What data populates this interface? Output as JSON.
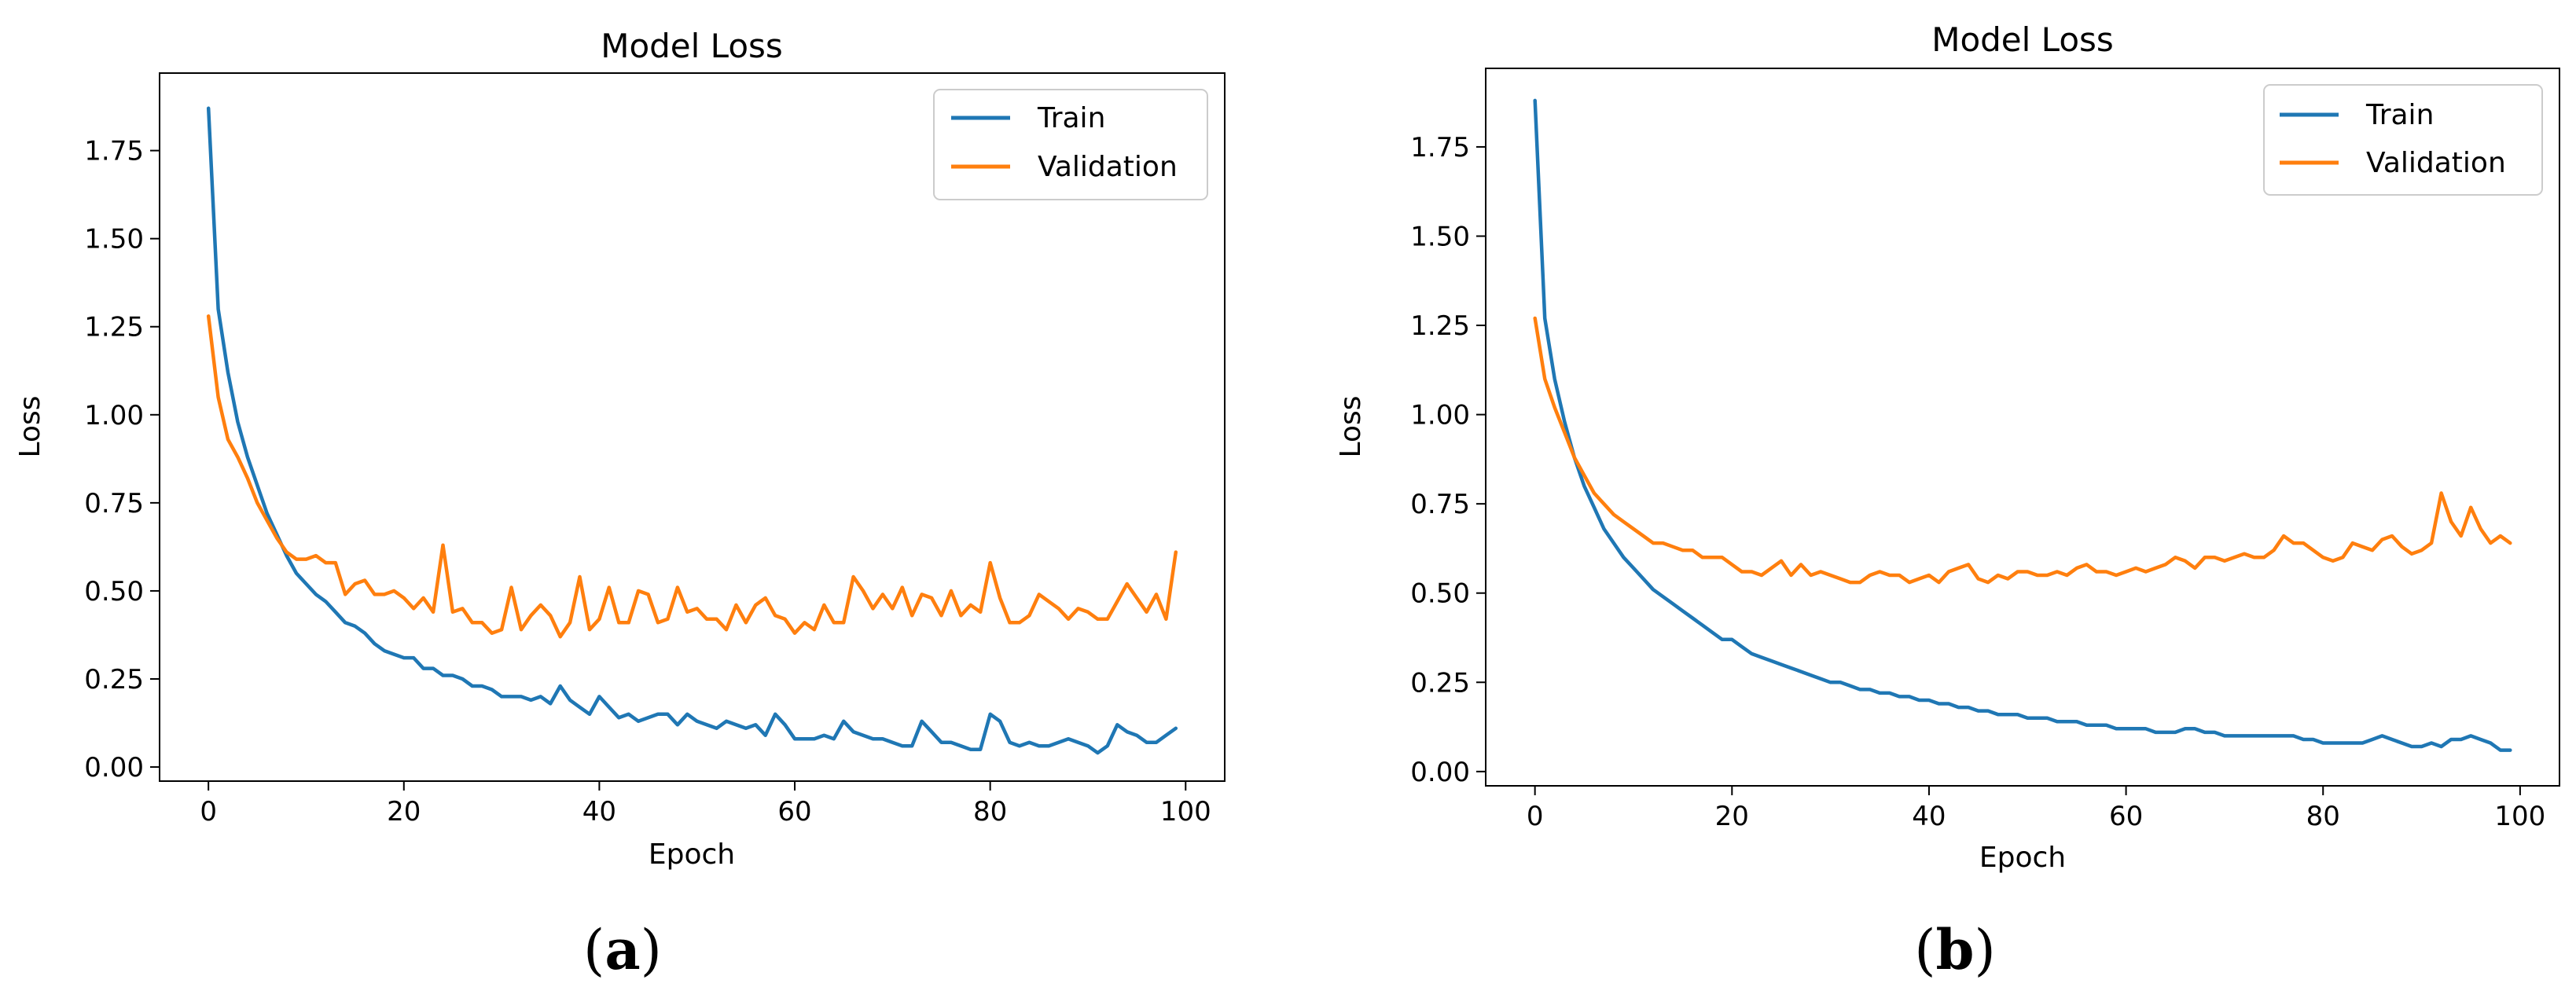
{
  "chart_data": [
    {
      "type": "line",
      "panel_label": "a",
      "title": "Model Loss",
      "xlabel": "Epoch",
      "ylabel": "Loss",
      "xlim": [
        -5,
        104
      ],
      "ylim": [
        -0.04,
        1.97
      ],
      "xticks": [
        0,
        20,
        40,
        60,
        80,
        100
      ],
      "xtick_labels": [
        "0",
        "20",
        "40",
        "60",
        "80",
        "100"
      ],
      "yticks": [
        0.0,
        0.25,
        0.5,
        0.75,
        1.0,
        1.25,
        1.5,
        1.75
      ],
      "ytick_labels": [
        "0.00",
        "0.25",
        "0.50",
        "0.75",
        "1.00",
        "1.25",
        "1.50",
        "1.75"
      ],
      "legend_position": "upper right",
      "series": [
        {
          "name": "Train",
          "color": "#1f77b4",
          "values": [
            1.87,
            1.3,
            1.12,
            0.98,
            0.88,
            0.8,
            0.72,
            0.66,
            0.6,
            0.55,
            0.52,
            0.49,
            0.47,
            0.44,
            0.41,
            0.4,
            0.38,
            0.35,
            0.33,
            0.32,
            0.31,
            0.31,
            0.28,
            0.28,
            0.26,
            0.26,
            0.25,
            0.23,
            0.23,
            0.22,
            0.2,
            0.2,
            0.2,
            0.19,
            0.2,
            0.18,
            0.23,
            0.19,
            0.17,
            0.15,
            0.2,
            0.17,
            0.14,
            0.15,
            0.13,
            0.14,
            0.15,
            0.15,
            0.12,
            0.15,
            0.13,
            0.12,
            0.11,
            0.13,
            0.12,
            0.11,
            0.12,
            0.09,
            0.15,
            0.12,
            0.08,
            0.08,
            0.08,
            0.09,
            0.08,
            0.13,
            0.1,
            0.09,
            0.08,
            0.08,
            0.07,
            0.06,
            0.06,
            0.13,
            0.1,
            0.07,
            0.07,
            0.06,
            0.05,
            0.05,
            0.15,
            0.13,
            0.07,
            0.06,
            0.07,
            0.06,
            0.06,
            0.07,
            0.08,
            0.07,
            0.06,
            0.04,
            0.06,
            0.12,
            0.1,
            0.09,
            0.07,
            0.07,
            0.09,
            0.11
          ]
        },
        {
          "name": "Validation",
          "color": "#ff7f0e",
          "values": [
            1.28,
            1.05,
            0.93,
            0.88,
            0.82,
            0.75,
            0.7,
            0.65,
            0.61,
            0.59,
            0.59,
            0.6,
            0.58,
            0.58,
            0.49,
            0.52,
            0.53,
            0.49,
            0.49,
            0.5,
            0.48,
            0.45,
            0.48,
            0.44,
            0.63,
            0.44,
            0.45,
            0.41,
            0.41,
            0.38,
            0.39,
            0.51,
            0.39,
            0.43,
            0.46,
            0.43,
            0.37,
            0.41,
            0.54,
            0.39,
            0.42,
            0.51,
            0.41,
            0.41,
            0.5,
            0.49,
            0.41,
            0.42,
            0.51,
            0.44,
            0.45,
            0.42,
            0.42,
            0.39,
            0.46,
            0.41,
            0.46,
            0.48,
            0.43,
            0.42,
            0.38,
            0.41,
            0.39,
            0.46,
            0.41,
            0.41,
            0.54,
            0.5,
            0.45,
            0.49,
            0.45,
            0.51,
            0.43,
            0.49,
            0.48,
            0.43,
            0.5,
            0.43,
            0.46,
            0.44,
            0.58,
            0.48,
            0.41,
            0.41,
            0.43,
            0.49,
            0.47,
            0.45,
            0.42,
            0.45,
            0.44,
            0.42,
            0.42,
            0.47,
            0.52,
            0.48,
            0.44,
            0.49,
            0.42,
            0.61
          ]
        }
      ]
    },
    {
      "type": "line",
      "panel_label": "b",
      "title": "Model Loss",
      "xlabel": "Epoch",
      "ylabel": "Loss",
      "xlim": [
        -5,
        104
      ],
      "ylim": [
        -0.04,
        1.97
      ],
      "xticks": [
        0,
        20,
        40,
        60,
        80,
        100
      ],
      "xtick_labels": [
        "0",
        "20",
        "40",
        "60",
        "80",
        "100"
      ],
      "yticks": [
        0.0,
        0.25,
        0.5,
        0.75,
        1.0,
        1.25,
        1.5,
        1.75
      ],
      "ytick_labels": [
        "0.00",
        "0.25",
        "0.50",
        "0.75",
        "1.00",
        "1.25",
        "1.50",
        "1.75"
      ],
      "legend_position": "upper right",
      "series": [
        {
          "name": "Train",
          "color": "#1f77b4",
          "values": [
            1.88,
            1.27,
            1.1,
            0.98,
            0.88,
            0.8,
            0.74,
            0.68,
            0.64,
            0.6,
            0.57,
            0.54,
            0.51,
            0.49,
            0.47,
            0.45,
            0.43,
            0.41,
            0.39,
            0.37,
            0.37,
            0.35,
            0.33,
            0.32,
            0.31,
            0.3,
            0.29,
            0.28,
            0.27,
            0.26,
            0.25,
            0.25,
            0.24,
            0.23,
            0.23,
            0.22,
            0.22,
            0.21,
            0.21,
            0.2,
            0.2,
            0.19,
            0.19,
            0.18,
            0.18,
            0.17,
            0.17,
            0.16,
            0.16,
            0.16,
            0.15,
            0.15,
            0.15,
            0.14,
            0.14,
            0.14,
            0.13,
            0.13,
            0.13,
            0.12,
            0.12,
            0.12,
            0.12,
            0.11,
            0.11,
            0.11,
            0.12,
            0.12,
            0.11,
            0.11,
            0.1,
            0.1,
            0.1,
            0.1,
            0.1,
            0.1,
            0.1,
            0.1,
            0.09,
            0.09,
            0.08,
            0.08,
            0.08,
            0.08,
            0.08,
            0.09,
            0.1,
            0.09,
            0.08,
            0.07,
            0.07,
            0.08,
            0.07,
            0.09,
            0.09,
            0.1,
            0.09,
            0.08,
            0.06,
            0.06
          ]
        },
        {
          "name": "Validation",
          "color": "#ff7f0e",
          "values": [
            1.27,
            1.1,
            1.02,
            0.95,
            0.88,
            0.83,
            0.78,
            0.75,
            0.72,
            0.7,
            0.68,
            0.66,
            0.64,
            0.64,
            0.63,
            0.62,
            0.62,
            0.6,
            0.6,
            0.6,
            0.58,
            0.56,
            0.56,
            0.55,
            0.57,
            0.59,
            0.55,
            0.58,
            0.55,
            0.56,
            0.55,
            0.54,
            0.53,
            0.53,
            0.55,
            0.56,
            0.55,
            0.55,
            0.53,
            0.54,
            0.55,
            0.53,
            0.56,
            0.57,
            0.58,
            0.54,
            0.53,
            0.55,
            0.54,
            0.56,
            0.56,
            0.55,
            0.55,
            0.56,
            0.55,
            0.57,
            0.58,
            0.56,
            0.56,
            0.55,
            0.56,
            0.57,
            0.56,
            0.57,
            0.58,
            0.6,
            0.59,
            0.57,
            0.6,
            0.6,
            0.59,
            0.6,
            0.61,
            0.6,
            0.6,
            0.62,
            0.66,
            0.64,
            0.64,
            0.62,
            0.6,
            0.59,
            0.6,
            0.64,
            0.63,
            0.62,
            0.65,
            0.66,
            0.63,
            0.61,
            0.62,
            0.64,
            0.78,
            0.7,
            0.66,
            0.74,
            0.68,
            0.64,
            0.66,
            0.64
          ]
        }
      ]
    }
  ]
}
